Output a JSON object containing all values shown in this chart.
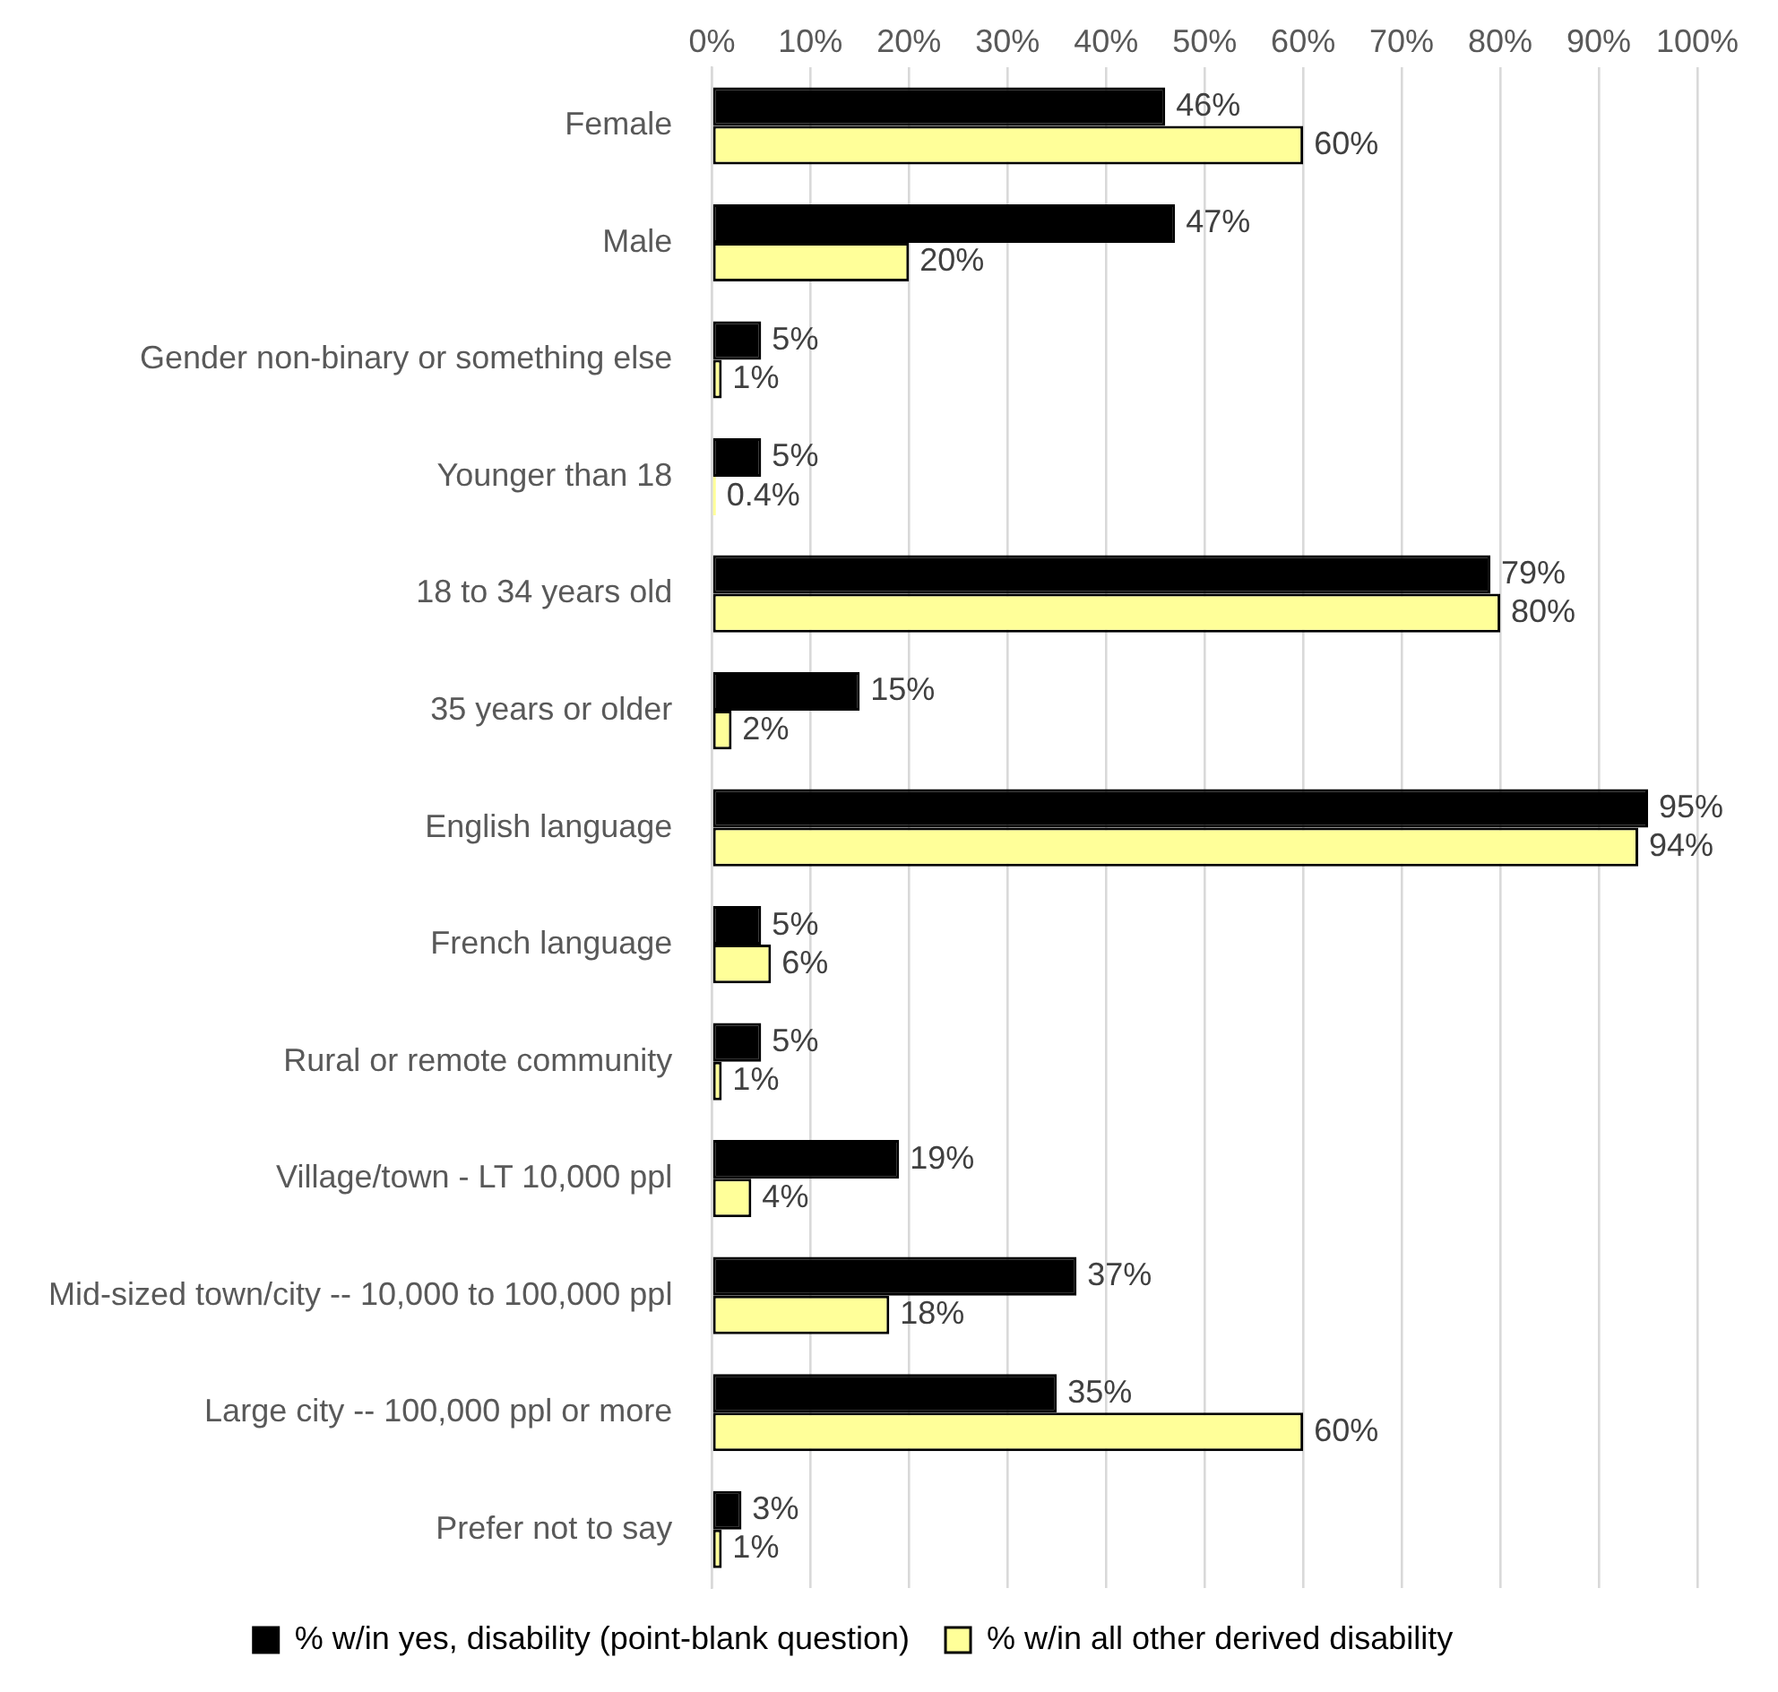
{
  "chart_data": {
    "type": "bar",
    "orientation": "horizontal",
    "categories": [
      "Female",
      "Male",
      "Gender non-binary or something else",
      "Younger than 18",
      "18 to 34 years old",
      "35 years or older",
      "English language",
      "French language",
      "Rural or remote community",
      "Village/town - LT 10,000 ppl",
      "Mid-sized town/city -- 10,000 to 100,000 ppl",
      "Large city -- 100,000 ppl or more",
      "Prefer not to say"
    ],
    "series": [
      {
        "name": "% w/in yes, disability (point-blank question)",
        "color": "#000000",
        "values": [
          46,
          47,
          5,
          5,
          79,
          15,
          95,
          5,
          5,
          19,
          37,
          35,
          3
        ],
        "value_labels": [
          "46%",
          "47%",
          "5%",
          "5%",
          "79%",
          "15%",
          "95%",
          "5%",
          "5%",
          "19%",
          "37%",
          "35%",
          "3%"
        ]
      },
      {
        "name": "% w/in all other derived disability",
        "color": "#ffff99",
        "values": [
          60,
          20,
          1,
          0.4,
          80,
          2,
          94,
          6,
          1,
          4,
          18,
          60,
          1
        ],
        "value_labels": [
          "60%",
          "20%",
          "1%",
          "0.4%",
          "80%",
          "2%",
          "94%",
          "6%",
          "1%",
          "4%",
          "18%",
          "60%",
          "1%"
        ]
      }
    ],
    "xlim": [
      0,
      100
    ],
    "xticks": [
      {
        "value": 0,
        "label": "0%"
      },
      {
        "value": 10,
        "label": "10%"
      },
      {
        "value": 20,
        "label": "20%"
      },
      {
        "value": 30,
        "label": "30%"
      },
      {
        "value": 40,
        "label": "40%"
      },
      {
        "value": 50,
        "label": "50%"
      },
      {
        "value": 60,
        "label": "60%"
      },
      {
        "value": 70,
        "label": "70%"
      },
      {
        "value": 80,
        "label": "80%"
      },
      {
        "value": 90,
        "label": "90%"
      },
      {
        "value": 100,
        "label": "100%"
      }
    ],
    "grid": "x",
    "legend": "bottom"
  }
}
